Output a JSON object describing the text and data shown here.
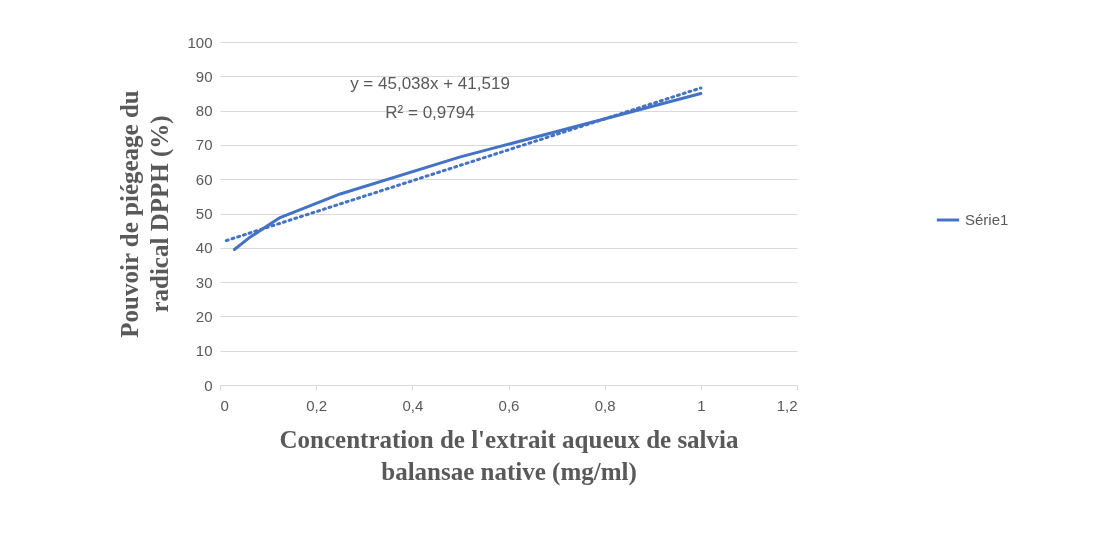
{
  "chart_data": {
    "type": "line",
    "xlabel": "Concentration de l'extrait aqueux de salvia balansae native  (mg/ml)",
    "ylabel": "Pouvoir de piégeage du radical DPPH (%)",
    "xlim": [
      0,
      1.2
    ],
    "xticks": [
      0,
      {
        "value": 0.2,
        "label": "0,2"
      },
      {
        "value": 0.4,
        "label": "0,4"
      },
      {
        "value": 0.6,
        "label": "0,6"
      },
      {
        "value": 0.8,
        "label": "0,8"
      },
      1,
      {
        "value": 1.2,
        "label": "1,2"
      }
    ],
    "ylim": [
      0,
      100
    ],
    "yticks": [
      0,
      10,
      20,
      30,
      40,
      50,
      60,
      70,
      80,
      90,
      100
    ],
    "grid": "y",
    "legend": "right",
    "marker": "none",
    "annotations": [
      "y = 45,038x + 41,519",
      "R² = 0,9794"
    ],
    "series": [
      {
        "name": "Série1",
        "color": "#4472c4",
        "line_style": "solid",
        "x": [
          0.03,
          0.0625,
          0.125,
          0.25,
          0.5,
          1
        ],
        "values": [
          39.5,
          43.1,
          48.8,
          55.7,
          66.5,
          85
        ]
      },
      {
        "color": "#4472c4",
        "line_style": "dotted",
        "x": [
          0.013,
          1
        ],
        "values": [
          42.1,
          86.6
        ]
      }
    ]
  }
}
